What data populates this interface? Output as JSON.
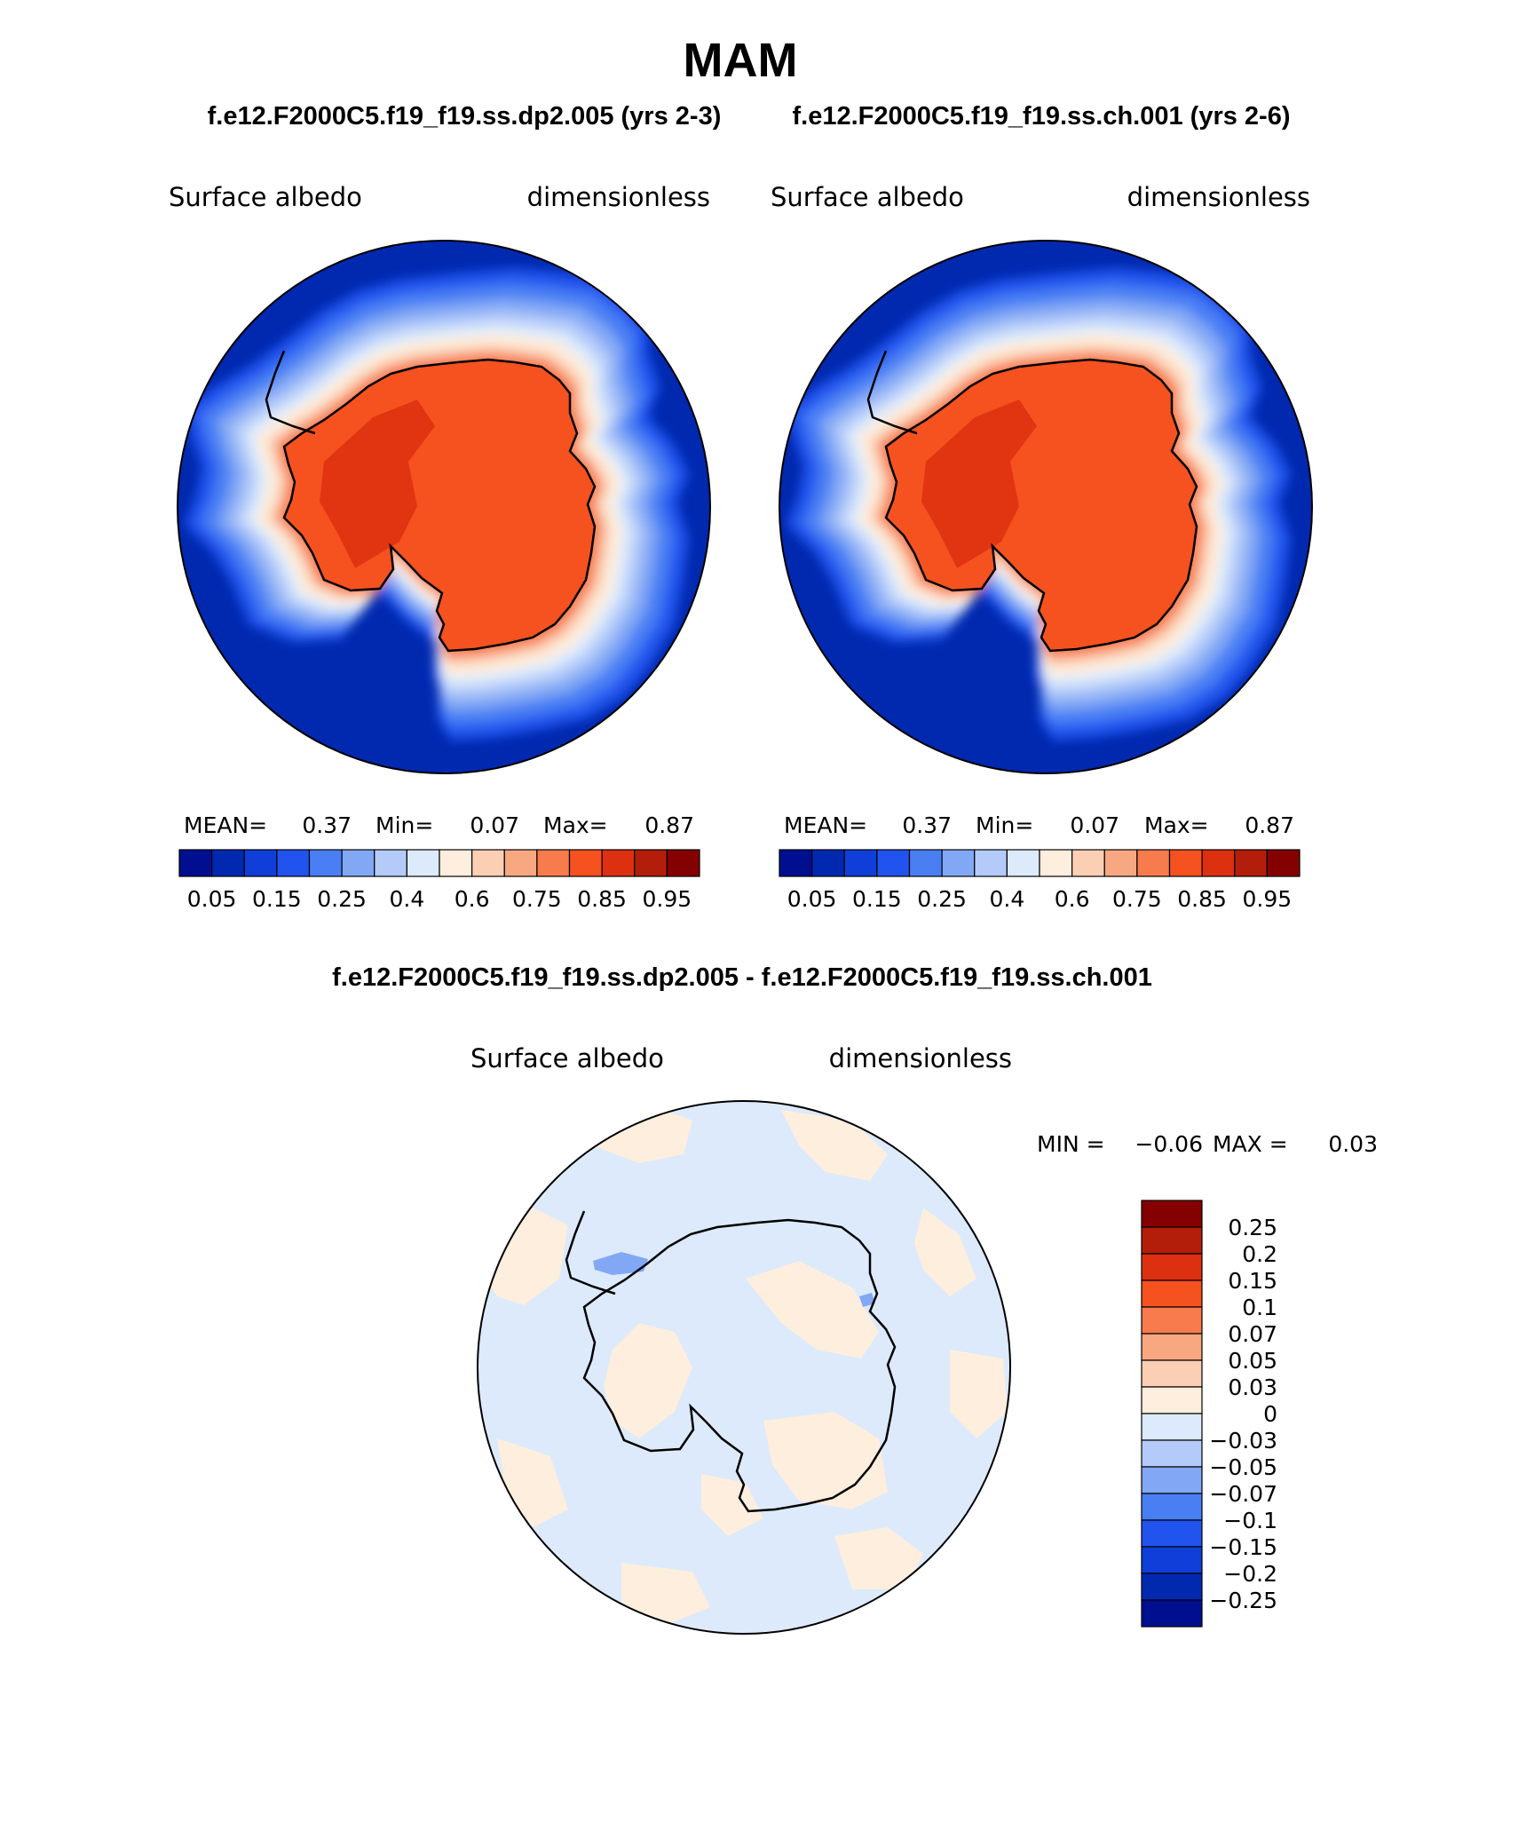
{
  "page": {
    "season": "MAM",
    "case_left_label": "f.e12.F2000C5.f19_f19.ss.dp2.005 (yrs 2-3)",
    "case_right_label": "f.e12.F2000C5.f19_f19.ss.ch.001 (yrs 2-6)",
    "diff_title": "f.e12.F2000C5.f19_f19.ss.dp2.005 - f.e12.F2000C5.f19_f19.ss.ch.001"
  },
  "panels": [
    {
      "variable": "Surface albedo",
      "units": "dimensionless",
      "stats": {
        "mean_label": "MEAN=",
        "mean": "0.37",
        "min_label": "Min=",
        "min": "0.07",
        "max_label": "Max=",
        "max": "0.87"
      },
      "colorbar_ticks": [
        "0.05",
        "0.15",
        "0.25",
        "0.4",
        "0.6",
        "0.75",
        "0.85",
        "0.95"
      ]
    },
    {
      "variable": "Surface albedo",
      "units": "dimensionless",
      "stats": {
        "mean_label": "MEAN=",
        "mean": "0.37",
        "min_label": "Min=",
        "min": "0.07",
        "max_label": "Max=",
        "max": "0.87"
      },
      "colorbar_ticks": [
        "0.05",
        "0.15",
        "0.25",
        "0.4",
        "0.6",
        "0.75",
        "0.85",
        "0.95"
      ]
    }
  ],
  "diff_panel": {
    "variable": "Surface albedo",
    "units": "dimensionless",
    "stats": {
      "min_label": "MIN =",
      "min": "−0.06",
      "max_label": "MAX =",
      "max": "0.03"
    },
    "colorbar_ticks": [
      "0.25",
      "0.2",
      "0.15",
      "0.1",
      "0.07",
      "0.05",
      "0.03",
      "0",
      "−0.03",
      "−0.05",
      "−0.07",
      "−0.1",
      "−0.15",
      "−0.2",
      "−0.25"
    ]
  },
  "colors": {
    "abs_scale": [
      "#000f8f",
      "#0029b0",
      "#0f3fd8",
      "#2154ee",
      "#4a7ff4",
      "#82a8f5",
      "#b4cbf9",
      "#dceafc",
      "#feeedd",
      "#fbcfb4",
      "#f7a880",
      "#f77b4d",
      "#f5521f",
      "#dd3010",
      "#b31e0a",
      "#850000"
    ],
    "diff_scale": [
      "#850000",
      "#b31e0a",
      "#dd3010",
      "#f5521f",
      "#f77b4d",
      "#f7a880",
      "#fbcfb4",
      "#feeedd",
      "#dceafc",
      "#b4cbf9",
      "#82a8f5",
      "#4a7ff4",
      "#2154ee",
      "#0f3fd8",
      "#0029b0",
      "#000f8f"
    ],
    "ocean": "#0029b0",
    "ice_main": "#f5521f",
    "ice_dark": "#dd3010",
    "diff_blue": "#dceafc",
    "diff_orange": "#feeedd",
    "diff_patch": "#82a8f5",
    "coast": "#000000"
  }
}
